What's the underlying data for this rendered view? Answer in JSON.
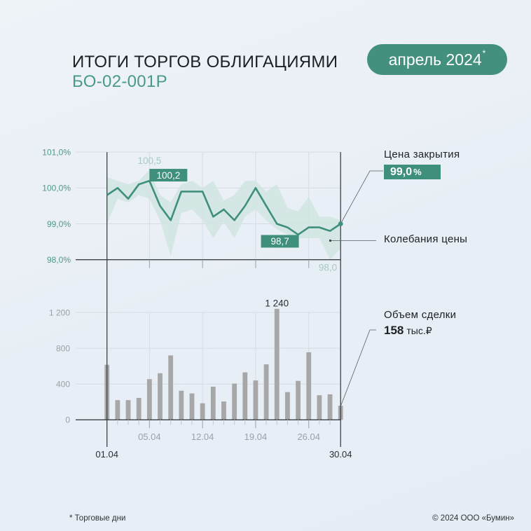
{
  "header": {
    "title": "ИТОГИ ТОРГОВ ОБЛИГАЦИЯМИ",
    "subtitle": "БО-02-001Р",
    "period_badge": "апрель 2024",
    "period_badge_mark": "*"
  },
  "legend": {
    "close_label": "Цена закрытия",
    "close_value": "99,0",
    "close_unit": "%",
    "range_label": "Колебания цены",
    "volume_label": "Объем сделки",
    "volume_value": "158",
    "volume_unit": "тыс.₽"
  },
  "footer": {
    "note": "* Торговые дни",
    "copyright": "© 2024 ООО «Бумин»"
  },
  "colors": {
    "accent": "#3f8f7d",
    "band": "#d0e5e0",
    "bar": "#a7a7a7",
    "grid": "#d6dce3",
    "axis": "#3c4146",
    "tick": "#9aa1a7",
    "teal_text": "#4f9a89",
    "light_teal": "#a6cac2",
    "gray_text": "#9aa1a7",
    "dark_text": "#2a2e33",
    "leader": "#5a5f64"
  },
  "chart_data": [
    {
      "type": "line",
      "title": "Цена закрытия / Колебания цены",
      "xlabel": "",
      "ylabel": "%",
      "ylim": [
        98.0,
        101.0
      ],
      "grid": true,
      "dates": [
        "01.04",
        "02.04",
        "03.04",
        "04.04",
        "05.04",
        "08.04",
        "09.04",
        "10.04",
        "11.04",
        "12.04",
        "15.04",
        "16.04",
        "17.04",
        "18.04",
        "19.04",
        "22.04",
        "23.04",
        "24.04",
        "25.04",
        "26.04",
        "27.04",
        "29.04",
        "30.04"
      ],
      "series": [
        {
          "name": "Цена закрытия",
          "values": [
            99.8,
            100.0,
            99.7,
            100.1,
            100.2,
            99.5,
            99.1,
            99.9,
            99.9,
            99.9,
            99.2,
            99.4,
            99.1,
            99.5,
            100.0,
            99.5,
            99.0,
            98.9,
            98.7,
            98.9,
            98.9,
            98.8,
            99.0
          ]
        },
        {
          "name": "Колебания цены (макс.)",
          "values": [
            100.3,
            100.2,
            100.1,
            100.2,
            100.5,
            99.8,
            99.6,
            100.1,
            100.2,
            100.0,
            100.2,
            99.65,
            99.8,
            100.2,
            100.2,
            99.9,
            100.1,
            99.45,
            99.35,
            99.75,
            99.2,
            99.2,
            99.1
          ]
        },
        {
          "name": "Колебания цены (мин.)",
          "values": [
            99.0,
            99.7,
            99.6,
            99.8,
            99.7,
            99.1,
            98.1,
            99.3,
            99.4,
            99.1,
            98.6,
            99.05,
            98.6,
            99.2,
            99.4,
            99.1,
            98.85,
            98.7,
            98.6,
            98.6,
            98.6,
            98.0,
            98.3
          ]
        }
      ],
      "y_ticks": [
        {
          "value": 98.0,
          "label": "98,0%"
        },
        {
          "value": 99.0,
          "label": "99,0%"
        },
        {
          "value": 100.0,
          "label": "100,0%"
        },
        {
          "value": 101.0,
          "label": "101,0%"
        }
      ],
      "x_labels": [
        {
          "index": 4,
          "label": "05.04"
        },
        {
          "index": 9,
          "label": "12.04"
        },
        {
          "index": 14,
          "label": "19.04"
        },
        {
          "index": 19,
          "label": "26.04"
        }
      ],
      "x_end_labels": [
        {
          "index": 0,
          "label": "01.04"
        },
        {
          "index": 22,
          "label": "30.04"
        }
      ],
      "annotations": [
        {
          "kind": "max",
          "index": 4,
          "value": 100.5,
          "text": "100,5"
        },
        {
          "kind": "close-high",
          "index": 4,
          "value": 100.2,
          "text": "100,2"
        },
        {
          "kind": "close-low",
          "index": 18,
          "value": 98.7,
          "text": "98,7"
        },
        {
          "kind": "min",
          "index": 21,
          "value": 98.0,
          "text": "98,0"
        }
      ]
    },
    {
      "type": "bar",
      "title": "Объем сделки",
      "xlabel": "",
      "ylabel": "тыс.₽",
      "ylim": [
        0,
        1240
      ],
      "grid": true,
      "dates": [
        "01.04",
        "02.04",
        "03.04",
        "04.04",
        "05.04",
        "08.04",
        "09.04",
        "10.04",
        "11.04",
        "12.04",
        "15.04",
        "16.04",
        "17.04",
        "18.04",
        "19.04",
        "22.04",
        "23.04",
        "24.04",
        "25.04",
        "26.04",
        "27.04",
        "29.04",
        "30.04"
      ],
      "values": [
        615,
        220,
        220,
        245,
        455,
        520,
        720,
        325,
        295,
        185,
        370,
        205,
        405,
        530,
        440,
        620,
        1240,
        310,
        435,
        755,
        275,
        285,
        158
      ],
      "y_ticks": [
        {
          "value": 0,
          "label": "0"
        },
        {
          "value": 400,
          "label": "400"
        },
        {
          "value": 800,
          "label": "800"
        },
        {
          "value": 1200,
          "label": "1 200"
        }
      ],
      "x_labels": [
        {
          "index": 4,
          "label": "05.04"
        },
        {
          "index": 9,
          "label": "12.04"
        },
        {
          "index": 14,
          "label": "19.04"
        },
        {
          "index": 19,
          "label": "26.04"
        }
      ],
      "annotations": [
        {
          "kind": "bar-value",
          "index": 16,
          "value": 1240,
          "text": "1 240"
        }
      ]
    }
  ]
}
